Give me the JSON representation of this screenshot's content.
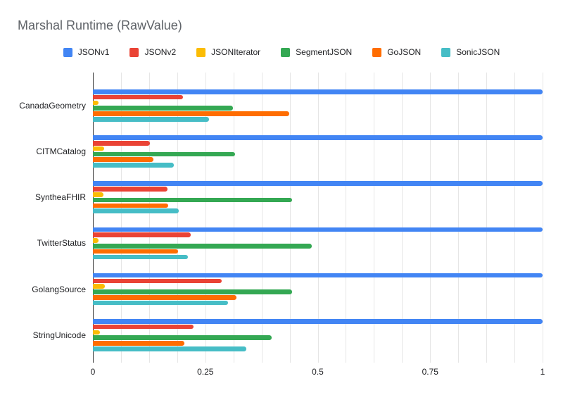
{
  "chart_data": {
    "type": "bar",
    "orientation": "horizontal",
    "title": "Marshal Runtime (RawValue)",
    "legend_position": "top",
    "grid": true,
    "categories": [
      "CanadaGeometry",
      "CITMCatalog",
      "SyntheaFHIR",
      "TwitterStatus",
      "GolangSource",
      "StringUnicode"
    ],
    "series": [
      {
        "name": "JSONv1",
        "color": "#4285F4",
        "values": [
          1.0,
          1.0,
          1.0,
          1.0,
          1.0,
          1.0
        ]
      },
      {
        "name": "JSONv2",
        "color": "#EA4335",
        "values": [
          0.2,
          0.127,
          0.166,
          0.218,
          0.286,
          0.224
        ]
      },
      {
        "name": "JSONIterator",
        "color": "#FBBC04",
        "values": [
          0.013,
          0.025,
          0.024,
          0.013,
          0.026,
          0.016
        ]
      },
      {
        "name": "SegmentJSON",
        "color": "#34A853",
        "values": [
          0.311,
          0.316,
          0.443,
          0.486,
          0.443,
          0.398
        ]
      },
      {
        "name": "GoJSON",
        "color": "#FF6D01",
        "values": [
          0.437,
          0.134,
          0.168,
          0.19,
          0.32,
          0.203
        ]
      },
      {
        "name": "SonicJSON",
        "color": "#46BDC6",
        "values": [
          0.258,
          0.18,
          0.191,
          0.212,
          0.3,
          0.341
        ]
      }
    ],
    "x_axis": {
      "min": 0,
      "max": 1,
      "minor_divisions": 16,
      "ticks": [
        {
          "label": "0",
          "value": 0
        },
        {
          "label": "0.25",
          "value": 0.25
        },
        {
          "label": "0.5",
          "value": 0.5
        },
        {
          "label": "0.75",
          "value": 0.75
        },
        {
          "label": "1",
          "value": 1
        }
      ]
    },
    "colors": {
      "background": "#ffffff",
      "title_text": "#5f6368",
      "axis_text": "#202124",
      "legend_text": "#202124",
      "gridline": "#e6e6e6",
      "axis_baseline": "#424242"
    }
  }
}
